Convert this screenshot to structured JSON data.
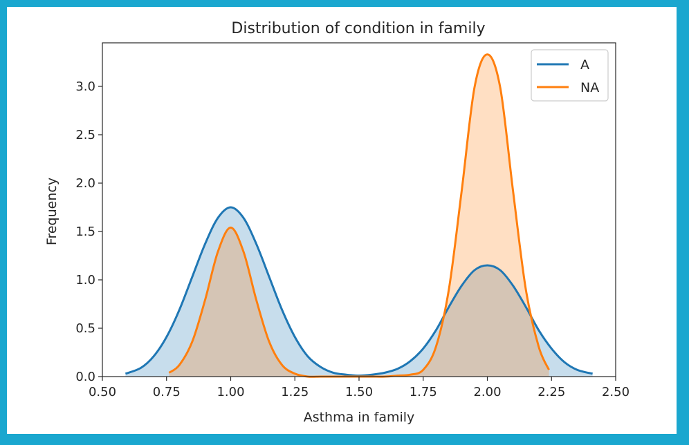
{
  "chart_data": {
    "type": "area",
    "title": "Distribution of condition in family",
    "xlabel": "Asthma in family",
    "ylabel": "Frequency",
    "xlim": [
      0.5,
      2.5
    ],
    "ylim": [
      0.0,
      3.45
    ],
    "xticks": [
      "0.50",
      "0.75",
      "1.00",
      "1.25",
      "1.50",
      "1.75",
      "2.00",
      "2.25",
      "2.50"
    ],
    "yticks": [
      "0.0",
      "0.5",
      "1.0",
      "1.5",
      "2.0",
      "2.5",
      "3.0"
    ],
    "grid": false,
    "legend_position": "top-right",
    "series": [
      {
        "name": "A",
        "color": "#1f77b4",
        "x": [
          0.59,
          0.65,
          0.7,
          0.75,
          0.8,
          0.85,
          0.9,
          0.95,
          1.0,
          1.05,
          1.1,
          1.15,
          1.2,
          1.25,
          1.3,
          1.35,
          1.4,
          1.45,
          1.5,
          1.55,
          1.6,
          1.65,
          1.7,
          1.75,
          1.8,
          1.85,
          1.9,
          1.95,
          2.0,
          2.05,
          2.1,
          2.15,
          2.2,
          2.25,
          2.3,
          2.35,
          2.41
        ],
        "y": [
          0.03,
          0.09,
          0.21,
          0.41,
          0.69,
          1.03,
          1.37,
          1.64,
          1.75,
          1.64,
          1.37,
          1.03,
          0.69,
          0.41,
          0.21,
          0.1,
          0.04,
          0.02,
          0.01,
          0.02,
          0.04,
          0.08,
          0.16,
          0.29,
          0.48,
          0.72,
          0.94,
          1.1,
          1.15,
          1.1,
          0.94,
          0.72,
          0.48,
          0.29,
          0.15,
          0.07,
          0.03
        ]
      },
      {
        "name": "NA",
        "color": "#ff7f0e",
        "x": [
          0.76,
          0.8,
          0.85,
          0.9,
          0.95,
          1.0,
          1.05,
          1.1,
          1.15,
          1.2,
          1.25,
          1.3,
          1.35,
          1.4,
          1.45,
          1.5,
          1.55,
          1.6,
          1.65,
          1.7,
          1.75,
          1.8,
          1.85,
          1.9,
          1.95,
          2.0,
          2.05,
          2.1,
          2.15,
          2.2,
          2.24
        ],
        "y": [
          0.04,
          0.12,
          0.36,
          0.79,
          1.29,
          1.54,
          1.29,
          0.79,
          0.36,
          0.12,
          0.03,
          0.0,
          0.0,
          0.0,
          0.0,
          0.0,
          0.0,
          0.0,
          0.01,
          0.02,
          0.07,
          0.31,
          0.9,
          1.92,
          2.99,
          3.33,
          2.99,
          1.92,
          0.9,
          0.31,
          0.07
        ]
      }
    ]
  }
}
